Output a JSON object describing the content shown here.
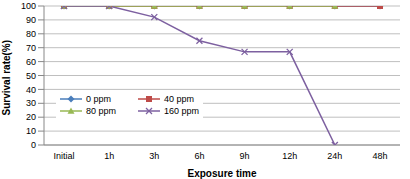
{
  "chart_data": {
    "type": "line",
    "x_label": "Exposure time",
    "y_label": "Survival rate(%)",
    "categories": [
      "Initial",
      "1h",
      "3h",
      "6h",
      "9h",
      "12h",
      "24h",
      "48h"
    ],
    "series": [
      {
        "name": "0 ppm",
        "color": "#4a7ebb",
        "marker": "diamond",
        "values": [
          100,
          100,
          100,
          100,
          100,
          100,
          100,
          100
        ]
      },
      {
        "name": "40 ppm",
        "color": "#be4b48",
        "marker": "square",
        "values": [
          100,
          100,
          100,
          100,
          100,
          100,
          100,
          100
        ]
      },
      {
        "name": "80 ppm",
        "color": "#98b954",
        "marker": "triangle",
        "values": [
          100,
          100,
          100,
          100,
          100,
          100,
          100,
          null
        ]
      },
      {
        "name": "160 ppm",
        "color": "#7d60a0",
        "marker": "x",
        "values": [
          100,
          100,
          92,
          75,
          67,
          67,
          0,
          null
        ]
      }
    ],
    "ylim": [
      0,
      100
    ],
    "yticks": [
      0,
      10,
      20,
      30,
      40,
      50,
      60,
      70,
      80,
      90,
      100
    ],
    "grid": true,
    "legend": "lower left"
  }
}
